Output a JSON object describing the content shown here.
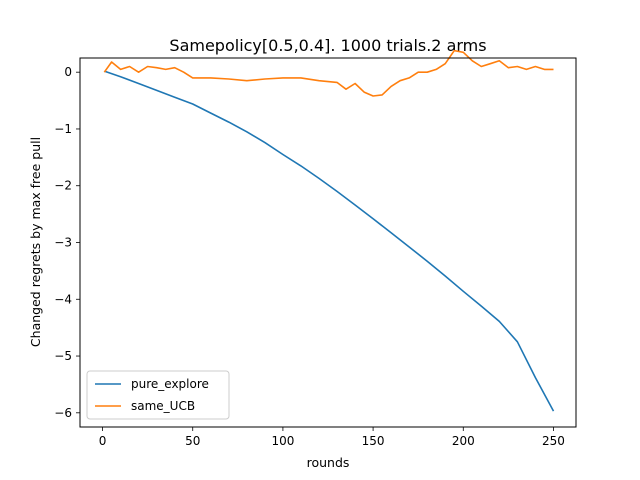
{
  "chart_data": {
    "type": "line",
    "title": "Samepolicy[0.5,0.4]. 1000 trials.2 arms",
    "xlabel": "rounds",
    "ylabel": "Changed regrets by max free pull",
    "xlim": [
      -12.5,
      262.5
    ],
    "ylim": [
      -6.25,
      0.25
    ],
    "xticks": [
      0,
      50,
      100,
      150,
      200,
      250
    ],
    "xtick_labels": [
      "0",
      "50",
      "100",
      "150",
      "200",
      "250"
    ],
    "yticks": [
      0,
      -1,
      -2,
      -3,
      -4,
      -5,
      -6
    ],
    "ytick_labels": [
      "0",
      "−1",
      "−2",
      "−3",
      "−4",
      "−5",
      "−6"
    ],
    "grid": false,
    "legend_position": "lower-left",
    "series": [
      {
        "name": "pure_explore",
        "color": "#1f77b4",
        "x": [
          1,
          10,
          20,
          30,
          40,
          50,
          60,
          70,
          80,
          90,
          100,
          110,
          120,
          130,
          140,
          150,
          160,
          170,
          180,
          190,
          200,
          210,
          220,
          230,
          240,
          250
        ],
        "y": [
          0.02,
          -0.08,
          -0.2,
          -0.32,
          -0.44,
          -0.56,
          -0.72,
          -0.88,
          -1.05,
          -1.24,
          -1.45,
          -1.65,
          -1.87,
          -2.1,
          -2.34,
          -2.58,
          -2.83,
          -3.08,
          -3.33,
          -3.59,
          -3.86,
          -4.12,
          -4.39,
          -4.75,
          -5.38,
          -5.97
        ]
      },
      {
        "name": "same_UCB",
        "color": "#ff7f0e",
        "x": [
          1,
          5,
          10,
          15,
          20,
          25,
          30,
          35,
          40,
          45,
          50,
          60,
          70,
          80,
          90,
          100,
          110,
          120,
          130,
          135,
          140,
          145,
          150,
          155,
          160,
          165,
          170,
          175,
          180,
          185,
          190,
          195,
          200,
          205,
          210,
          215,
          220,
          225,
          230,
          235,
          240,
          245,
          250
        ],
        "y": [
          0.0,
          0.18,
          0.05,
          0.1,
          0.0,
          0.1,
          0.08,
          0.05,
          0.08,
          0.0,
          -0.1,
          -0.1,
          -0.12,
          -0.15,
          -0.12,
          -0.1,
          -0.1,
          -0.15,
          -0.18,
          -0.3,
          -0.2,
          -0.35,
          -0.42,
          -0.4,
          -0.25,
          -0.15,
          -0.1,
          0.0,
          0.0,
          0.05,
          0.15,
          0.38,
          0.35,
          0.2,
          0.1,
          0.15,
          0.2,
          0.08,
          0.1,
          0.05,
          0.1,
          0.05,
          0.05
        ]
      }
    ]
  }
}
